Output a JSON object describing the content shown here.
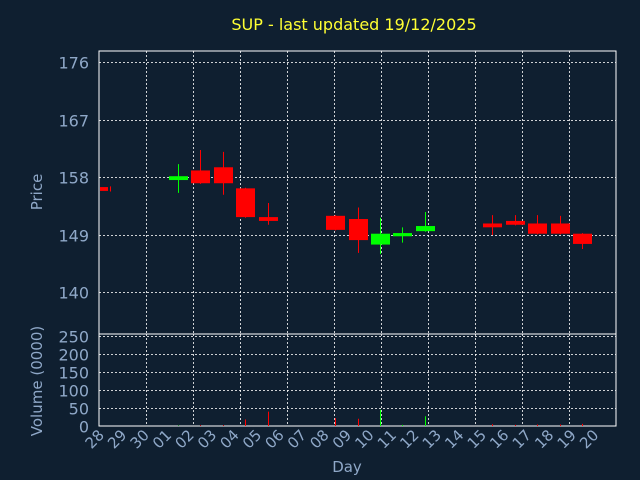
{
  "chart_data": {
    "type": "candlestick",
    "title": "SUP - last updated 19/12/2025",
    "xlabel": "Day",
    "price_panel": {
      "ylabel": "Price",
      "yticks": [
        140,
        149,
        158,
        167,
        176
      ],
      "ylim": [
        133.5,
        177.8
      ]
    },
    "volume_panel": {
      "ylabel": "Volume (0000)",
      "yticks": [
        0,
        50,
        100,
        150,
        200,
        250
      ],
      "ylim": [
        0,
        255
      ]
    },
    "grid": true,
    "colors": {
      "background": "#0f1f30",
      "up": "#00ff00",
      "down": "#ff0000",
      "grid": "#ffffff",
      "title": "#ffff33",
      "labels": "#8fa8c8"
    },
    "categories": [
      "28",
      "29",
      "30",
      "01",
      "02",
      "03",
      "04",
      "05",
      "06",
      "07",
      "08",
      "09",
      "10",
      "11",
      "12",
      "13",
      "14",
      "15",
      "16",
      "17",
      "18",
      "19",
      "20"
    ],
    "candles": [
      {
        "day": "28",
        "open": 156.5,
        "close": 155.9,
        "high": 156.6,
        "low": 155.8,
        "volume": 0
      },
      {
        "day": "01",
        "open": 157.6,
        "close": 158.2,
        "high": 160.1,
        "low": 155.6,
        "volume": 1
      },
      {
        "day": "02",
        "open": 159.1,
        "close": 157.1,
        "high": 162.3,
        "low": 157.0,
        "volume": 2
      },
      {
        "day": "03",
        "open": 159.6,
        "close": 157.1,
        "high": 162.0,
        "low": 155.3,
        "volume": 2
      },
      {
        "day": "04",
        "open": 156.3,
        "close": 151.8,
        "high": 156.4,
        "low": 151.7,
        "volume": 18
      },
      {
        "day": "05",
        "open": 151.8,
        "close": 151.2,
        "high": 154.0,
        "low": 150.6,
        "volume": 40
      },
      {
        "day": "08",
        "open": 152.0,
        "close": 149.8,
        "high": 152.1,
        "low": 149.7,
        "volume": 22
      },
      {
        "day": "09",
        "open": 151.5,
        "close": 148.2,
        "high": 153.3,
        "low": 146.2,
        "volume": 20
      },
      {
        "day": "10",
        "open": 147.5,
        "close": 149.2,
        "high": 151.7,
        "low": 146.0,
        "volume": 45
      },
      {
        "day": "11",
        "open": 148.8,
        "close": 149.3,
        "high": 150.2,
        "low": 147.8,
        "volume": 3
      },
      {
        "day": "12",
        "open": 149.6,
        "close": 150.4,
        "high": 152.6,
        "low": 149.5,
        "volume": 27
      },
      {
        "day": "15",
        "open": 150.8,
        "close": 150.2,
        "high": 152.1,
        "low": 149.0,
        "volume": 5
      },
      {
        "day": "16",
        "open": 151.2,
        "close": 150.6,
        "high": 152.1,
        "low": 150.5,
        "volume": 3
      },
      {
        "day": "17",
        "open": 150.8,
        "close": 149.2,
        "high": 152.1,
        "low": 149.1,
        "volume": 4
      },
      {
        "day": "18",
        "open": 150.8,
        "close": 149.2,
        "high": 152.0,
        "low": 149.1,
        "volume": 4
      },
      {
        "day": "19",
        "open": 149.2,
        "close": 147.6,
        "high": 149.3,
        "low": 146.8,
        "volume": 6
      }
    ]
  }
}
